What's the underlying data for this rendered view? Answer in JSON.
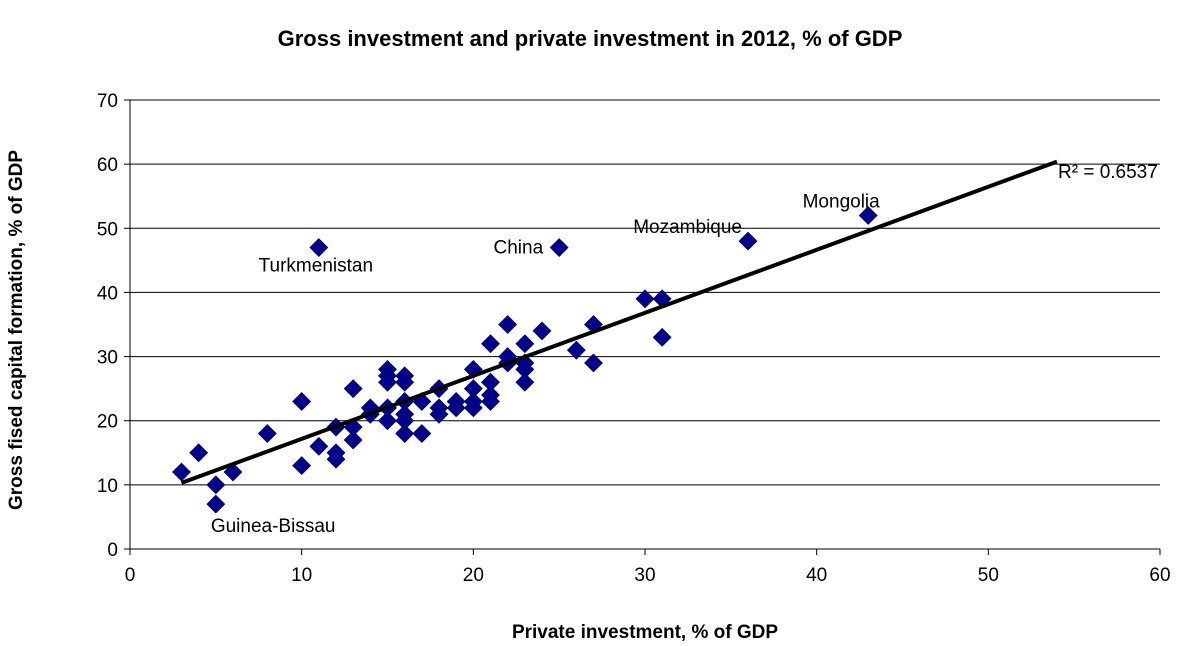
{
  "chart_data": {
    "type": "scatter",
    "title": "Gross investment and private investment in 2012, % of GDP",
    "xlabel": "Private investment, % of GDP",
    "ylabel": "Gross fised capital formation, % of GDP",
    "xlim": [
      0,
      60
    ],
    "ylim": [
      0,
      70
    ],
    "xticks": [
      "0",
      "10",
      "20",
      "30",
      "40",
      "50",
      "60"
    ],
    "yticks": [
      "0",
      "10",
      "20",
      "30",
      "40",
      "50",
      "60",
      "70"
    ],
    "grid": "horizontal",
    "marker": "diamond",
    "marker_color": "#00008b",
    "points": [
      {
        "x": 3,
        "y": 12
      },
      {
        "x": 4,
        "y": 15
      },
      {
        "x": 5,
        "y": 10
      },
      {
        "x": 5,
        "y": 7
      },
      {
        "x": 6,
        "y": 12
      },
      {
        "x": 8,
        "y": 18
      },
      {
        "x": 10,
        "y": 23
      },
      {
        "x": 10,
        "y": 13
      },
      {
        "x": 11,
        "y": 47
      },
      {
        "x": 11,
        "y": 16
      },
      {
        "x": 12,
        "y": 19
      },
      {
        "x": 12,
        "y": 15
      },
      {
        "x": 12,
        "y": 14
      },
      {
        "x": 13,
        "y": 25
      },
      {
        "x": 13,
        "y": 19
      },
      {
        "x": 13,
        "y": 17
      },
      {
        "x": 14,
        "y": 22
      },
      {
        "x": 14,
        "y": 21
      },
      {
        "x": 15,
        "y": 28
      },
      {
        "x": 15,
        "y": 27
      },
      {
        "x": 15,
        "y": 26
      },
      {
        "x": 15,
        "y": 22
      },
      {
        "x": 15,
        "y": 20
      },
      {
        "x": 16,
        "y": 27
      },
      {
        "x": 16,
        "y": 26
      },
      {
        "x": 16,
        "y": 23
      },
      {
        "x": 16,
        "y": 21
      },
      {
        "x": 16,
        "y": 20
      },
      {
        "x": 16,
        "y": 18
      },
      {
        "x": 17,
        "y": 23
      },
      {
        "x": 17,
        "y": 18
      },
      {
        "x": 18,
        "y": 25
      },
      {
        "x": 18,
        "y": 22
      },
      {
        "x": 18,
        "y": 21
      },
      {
        "x": 19,
        "y": 23
      },
      {
        "x": 19,
        "y": 22
      },
      {
        "x": 20,
        "y": 28
      },
      {
        "x": 20,
        "y": 25
      },
      {
        "x": 20,
        "y": 23
      },
      {
        "x": 20,
        "y": 22
      },
      {
        "x": 21,
        "y": 32
      },
      {
        "x": 21,
        "y": 26
      },
      {
        "x": 21,
        "y": 24
      },
      {
        "x": 21,
        "y": 23
      },
      {
        "x": 22,
        "y": 35
      },
      {
        "x": 22,
        "y": 30
      },
      {
        "x": 22,
        "y": 29
      },
      {
        "x": 23,
        "y": 32
      },
      {
        "x": 23,
        "y": 29
      },
      {
        "x": 23,
        "y": 28
      },
      {
        "x": 23,
        "y": 26
      },
      {
        "x": 24,
        "y": 34
      },
      {
        "x": 25,
        "y": 47
      },
      {
        "x": 26,
        "y": 31
      },
      {
        "x": 27,
        "y": 35
      },
      {
        "x": 27,
        "y": 29
      },
      {
        "x": 30,
        "y": 39
      },
      {
        "x": 31,
        "y": 39
      },
      {
        "x": 31,
        "y": 33
      },
      {
        "x": 36,
        "y": 48
      },
      {
        "x": 43,
        "y": 52
      }
    ],
    "annotations": [
      {
        "text": "Turkmenistan",
        "x": 11,
        "y": 47
      },
      {
        "text": "China",
        "x": 25,
        "y": 47
      },
      {
        "text": "Mozambique",
        "x": 36,
        "y": 48
      },
      {
        "text": "Mongolia",
        "x": 43,
        "y": 52
      },
      {
        "text": "Guinea-Bissau",
        "x": 5,
        "y": 7
      }
    ],
    "trendline": {
      "x": [
        3,
        54
      ],
      "y": [
        10.3,
        60.4
      ],
      "color": "#000000",
      "r2_label": "R² = 0.6537"
    }
  }
}
